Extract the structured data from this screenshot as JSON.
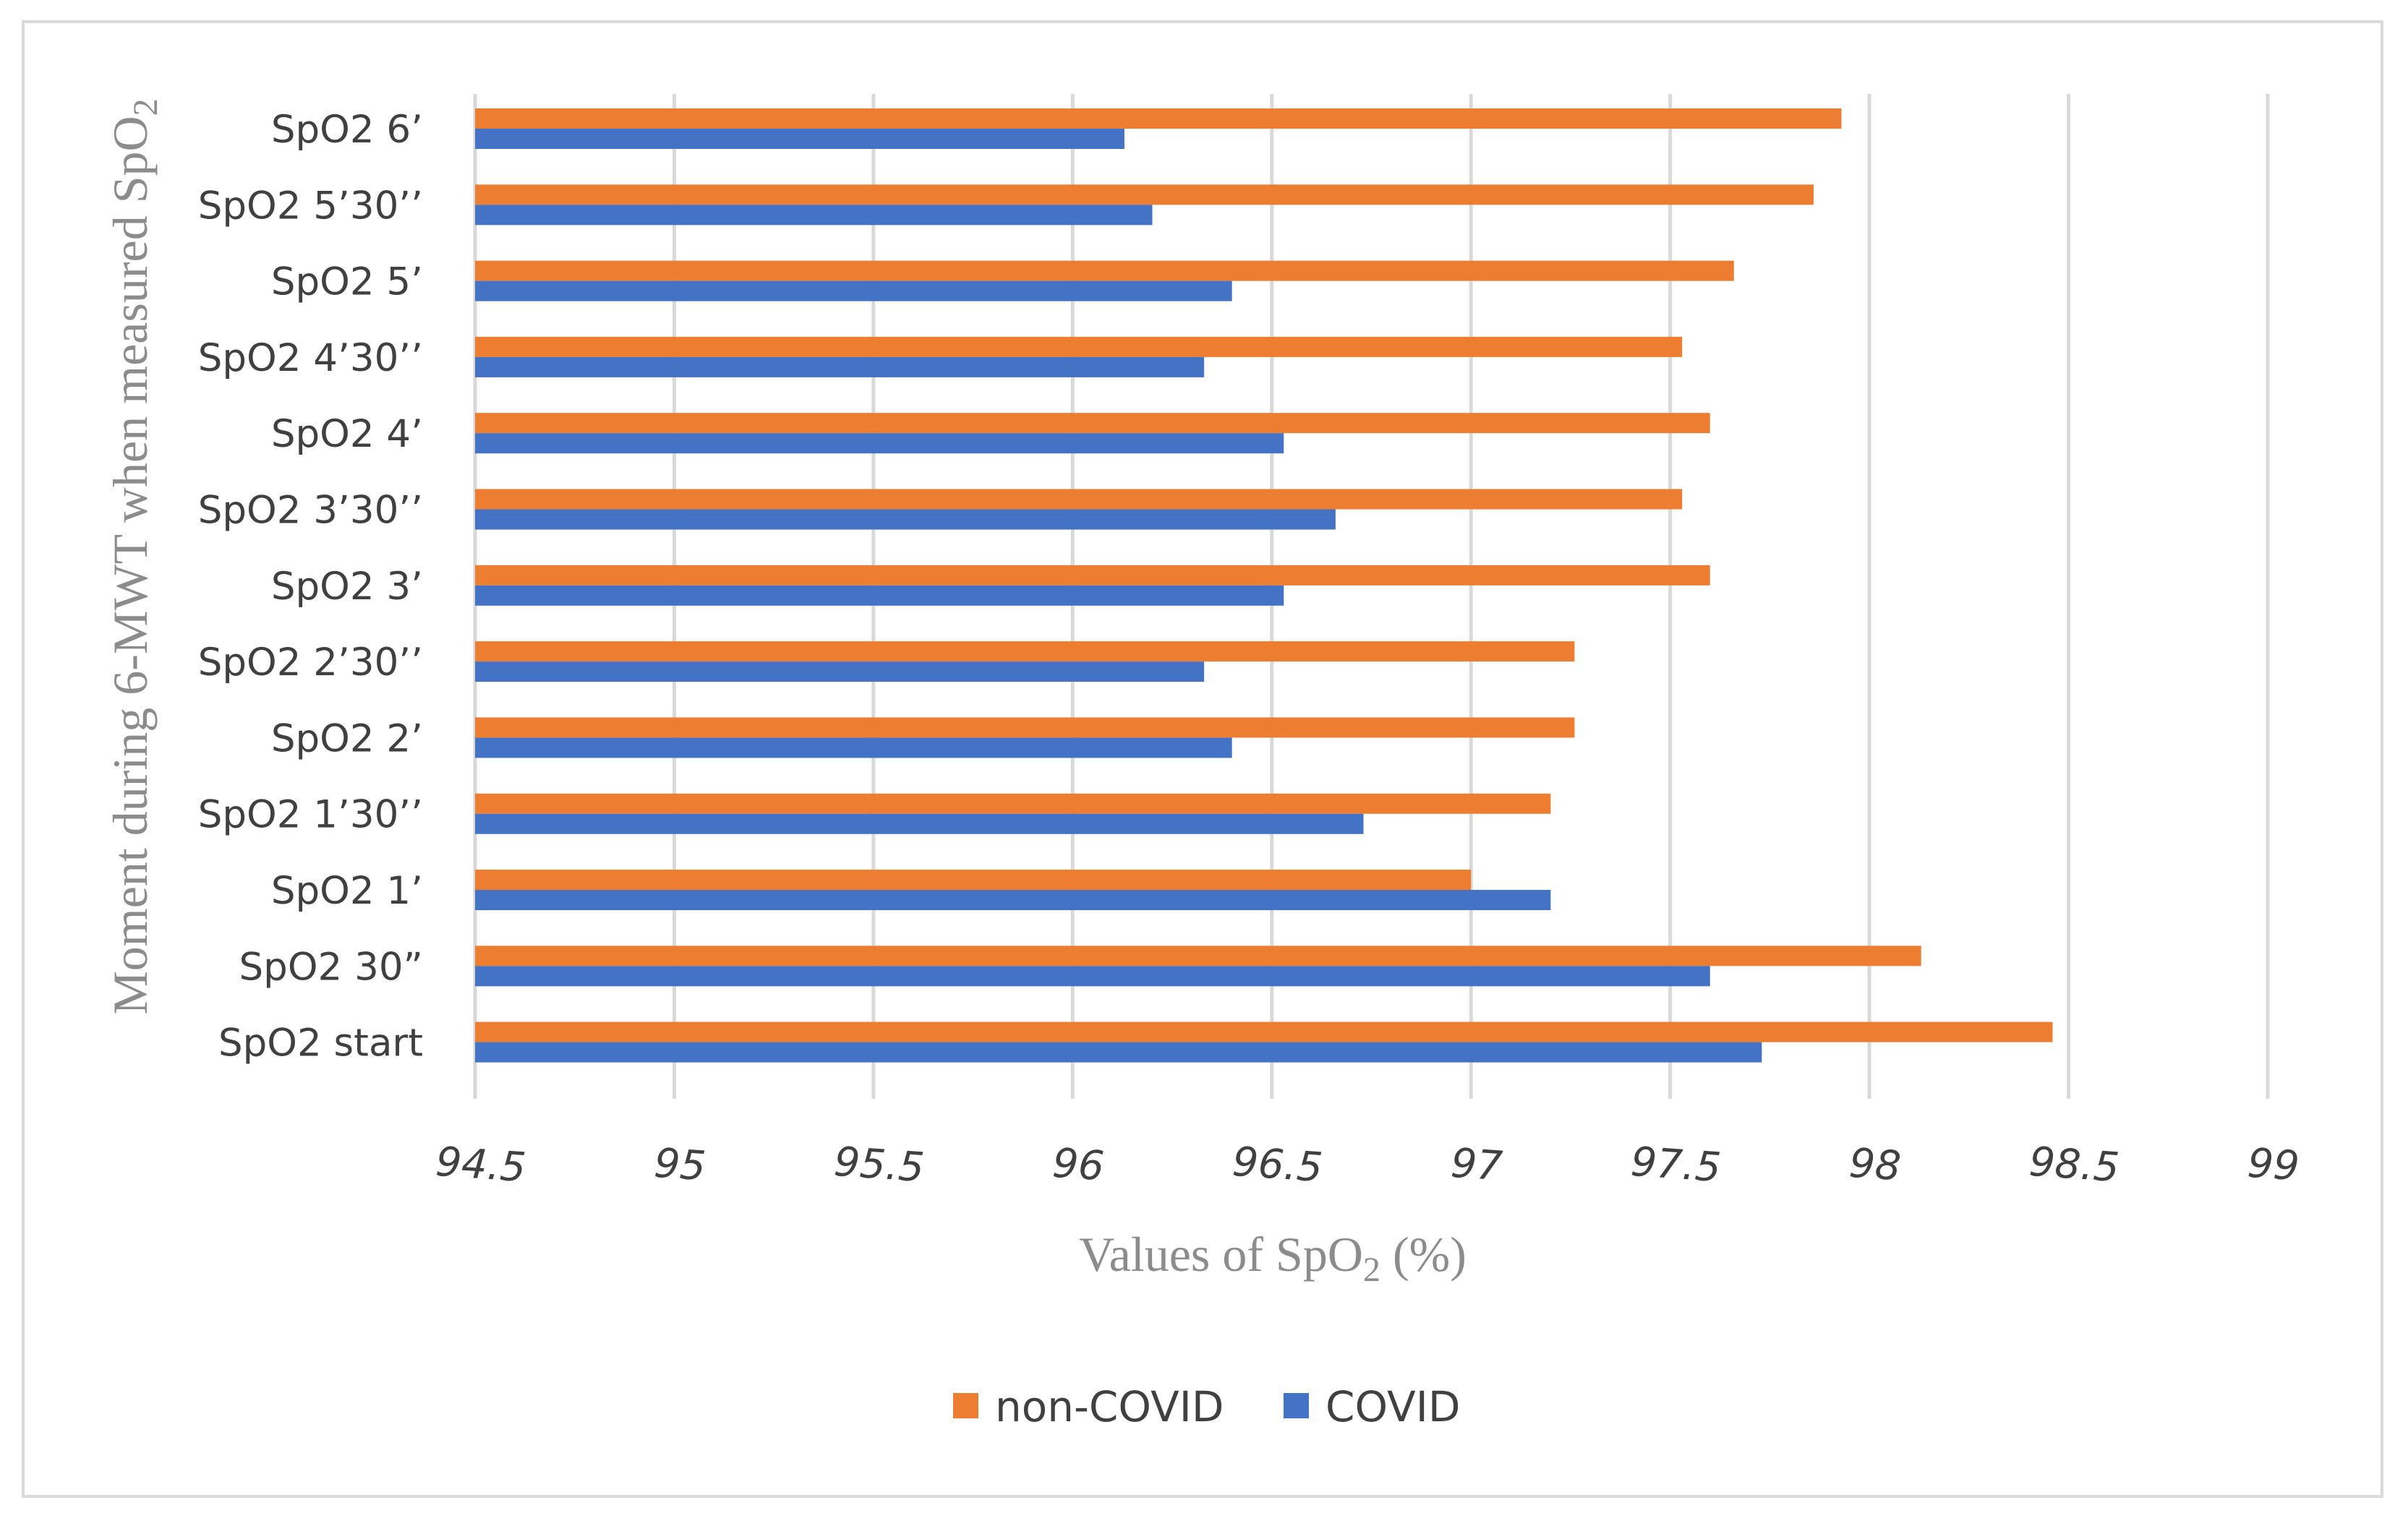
{
  "chart_data": {
    "type": "bar",
    "orientation": "horizontal",
    "title": "",
    "xlabel_prefix": "Values of SpO",
    "xlabel_sub": "2",
    "xlabel_suffix": " (%)",
    "ylabel_prefix": "Moment during 6-MWT when measured SpO",
    "ylabel_sub": "2",
    "xlim": [
      94.5,
      99
    ],
    "xticks": [
      "94.5",
      "95",
      "95.5",
      "96",
      "96.5",
      "97",
      "97.5",
      "98",
      "98.5",
      "99"
    ],
    "categories": [
      "SpO2 6’",
      "SpO2 5’30’’",
      "SpO2 5’",
      "SpO2 4’30’’",
      "SpO2 4’",
      "SpO2 3’30’’",
      "SpO2 3’",
      "SpO2 2’30’’",
      "SpO2 2’",
      "SpO2 1’30’’",
      "SpO2 1’",
      "SpO2 30”",
      "SpO2 start"
    ],
    "series": [
      {
        "name": "non-COVID",
        "color": "#ED7D31",
        "values": [
          97.93,
          97.86,
          97.66,
          97.53,
          97.6,
          97.53,
          97.6,
          97.26,
          97.26,
          97.2,
          97.0,
          98.13,
          98.46
        ]
      },
      {
        "name": "COVID",
        "color": "#4472C4",
        "values": [
          96.13,
          96.2,
          96.4,
          96.33,
          96.53,
          96.66,
          96.53,
          96.33,
          96.4,
          96.73,
          97.2,
          97.6,
          97.73
        ]
      }
    ],
    "grid": true,
    "legend_position": "bottom"
  }
}
